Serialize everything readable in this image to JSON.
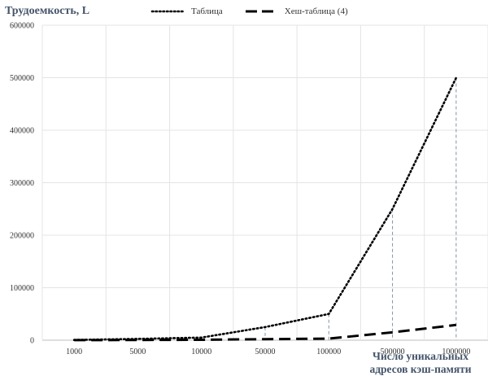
{
  "chart_data": {
    "type": "line",
    "ylabel": "Трудоемкость, L",
    "xlabel_lines": [
      "Число уникальных",
      "адресов кэш-памяти"
    ],
    "categories": [
      "1000",
      "5000",
      "10000",
      "50000",
      "100000",
      "500000",
      "1000000"
    ],
    "ylim": [
      0,
      600000
    ],
    "yticks": [
      "0",
      "100000",
      "200000",
      "300000",
      "400000",
      "500000",
      "600000"
    ],
    "grid": true,
    "legend_position": "top-center",
    "series": [
      {
        "name": "Таблица",
        "style": "dotted",
        "color": "#000000",
        "values": [
          500,
          2500,
          5000,
          25000,
          50000,
          250000,
          500000
        ]
      },
      {
        "name": "Хеш-таблица (4)",
        "style": "dashed",
        "color": "#000000",
        "values": [
          100,
          400,
          800,
          2000,
          3000,
          15000,
          29000
        ]
      }
    ],
    "drop_lines_color": "#7f94a8"
  }
}
